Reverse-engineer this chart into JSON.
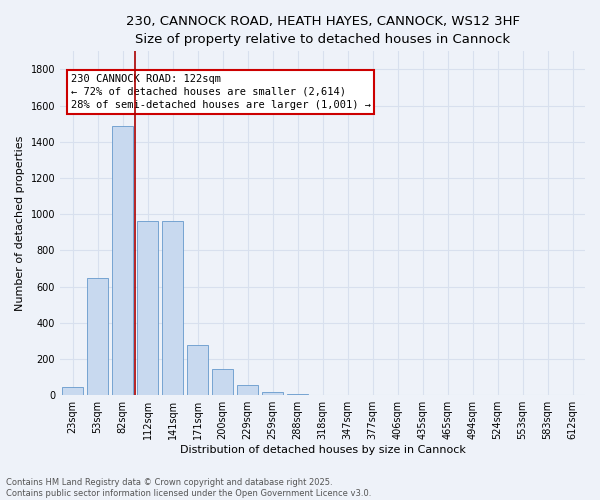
{
  "title_line1": "230, CANNOCK ROAD, HEATH HAYES, CANNOCK, WS12 3HF",
  "title_line2": "Size of property relative to detached houses in Cannock",
  "xlabel": "Distribution of detached houses by size in Cannock",
  "ylabel": "Number of detached properties",
  "categories": [
    "23sqm",
    "53sqm",
    "82sqm",
    "112sqm",
    "141sqm",
    "171sqm",
    "200sqm",
    "229sqm",
    "259sqm",
    "288sqm",
    "318sqm",
    "347sqm",
    "377sqm",
    "406sqm",
    "435sqm",
    "465sqm",
    "494sqm",
    "524sqm",
    "553sqm",
    "583sqm",
    "612sqm"
  ],
  "values": [
    45,
    650,
    1490,
    960,
    960,
    280,
    145,
    55,
    20,
    8,
    2,
    1,
    0,
    0,
    0,
    0,
    0,
    0,
    0,
    0,
    0
  ],
  "bar_color": "#c8d9ef",
  "bar_edge_color": "#6699cc",
  "vline_x": 2.5,
  "vline_color": "#aa0000",
  "annotation_text": "230 CANNOCK ROAD: 122sqm\n← 72% of detached houses are smaller (2,614)\n28% of semi-detached houses are larger (1,001) →",
  "annotation_box_edge": "#cc0000",
  "ylim": [
    0,
    1900
  ],
  "yticks": [
    0,
    200,
    400,
    600,
    800,
    1000,
    1200,
    1400,
    1600,
    1800
  ],
  "footer_text": "Contains HM Land Registry data © Crown copyright and database right 2025.\nContains public sector information licensed under the Open Government Licence v3.0.",
  "background_color": "#eef2f9",
  "grid_color": "#d8e0ee",
  "title_fontsize": 9.5,
  "subtitle_fontsize": 8.5,
  "axis_label_fontsize": 8,
  "tick_fontsize": 7,
  "annotation_fontsize": 7.5,
  "footer_fontsize": 6
}
